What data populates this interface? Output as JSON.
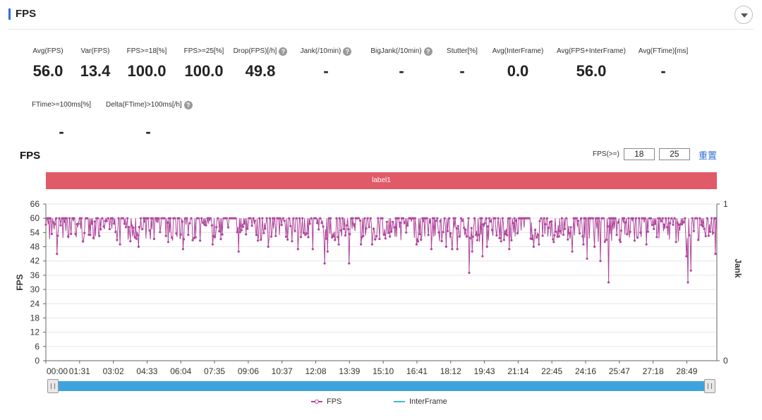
{
  "header": {
    "title": "FPS"
  },
  "metrics": [
    {
      "label": "Avg(FPS)",
      "value": "56.0",
      "help": false
    },
    {
      "label": "Var(FPS)",
      "value": "13.4",
      "help": false
    },
    {
      "label": "FPS>=18[%]",
      "value": "100.0",
      "help": false
    },
    {
      "label": "FPS>=25[%]",
      "value": "100.0",
      "help": false
    },
    {
      "label": "Drop(FPS)[/h]",
      "value": "49.8",
      "help": true
    },
    {
      "label": "Jank(/10min)",
      "value": "-",
      "help": true
    },
    {
      "label": "BigJank(/10min)",
      "value": "-",
      "help": true
    },
    {
      "label": "Stutter[%]",
      "value": "-",
      "help": false
    },
    {
      "label": "Avg(InterFrame)",
      "value": "0.0",
      "help": false
    },
    {
      "label": "Avg(FPS+InterFrame)",
      "value": "56.0",
      "help": false
    },
    {
      "label": "Avg(FTime)[ms]",
      "value": "-",
      "help": false
    },
    {
      "label": "FTime>=100ms[%]",
      "value": "-",
      "help": false
    },
    {
      "label": "Delta(FTime)>100ms[/h]",
      "value": "-",
      "help": true
    }
  ],
  "help_glyph": "?",
  "chart_section": {
    "title": "FPS",
    "threshold_label": "FPS(>=)",
    "threshold_values": [
      "18",
      "25"
    ],
    "reset_label": "重置",
    "band_label": "label1"
  },
  "chart_data": {
    "type": "line",
    "ylabel": "FPS",
    "y2label": "Jank",
    "yticks": [
      "0",
      "6",
      "12",
      "18",
      "24",
      "30",
      "36",
      "42",
      "48",
      "54",
      "60",
      "66"
    ],
    "ylim": [
      0,
      66
    ],
    "y2ticks": [
      "0",
      "1"
    ],
    "xticks": [
      "00:00",
      "01:31",
      "03:02",
      "04:33",
      "06:04",
      "07:35",
      "09:06",
      "10:37",
      "12:08",
      "13:39",
      "15:10",
      "16:41",
      "18:12",
      "19:43",
      "21:14",
      "22:45",
      "24:16",
      "25:47",
      "27:18",
      "28:49"
    ],
    "xlim_seconds": [
      0,
      1810
    ],
    "series": [
      {
        "name": "FPS",
        "color": "#b0479c"
      },
      {
        "name": "InterFrame",
        "color": "#3fb8d8",
        "values": []
      }
    ],
    "fps_dips": [
      {
        "t": 30,
        "v": 45
      },
      {
        "t": 200,
        "v": 49
      },
      {
        "t": 250,
        "v": 48
      },
      {
        "t": 330,
        "v": 50
      },
      {
        "t": 370,
        "v": 47
      },
      {
        "t": 450,
        "v": 49
      },
      {
        "t": 520,
        "v": 46
      },
      {
        "t": 600,
        "v": 48
      },
      {
        "t": 680,
        "v": 47
      },
      {
        "t": 720,
        "v": 47
      },
      {
        "t": 760,
        "v": 46
      },
      {
        "t": 790,
        "v": 49
      },
      {
        "t": 850,
        "v": 49
      },
      {
        "t": 880,
        "v": 49
      },
      {
        "t": 1000,
        "v": 49
      },
      {
        "t": 1040,
        "v": 47
      },
      {
        "t": 1080,
        "v": 48
      },
      {
        "t": 1110,
        "v": 47
      },
      {
        "t": 1150,
        "v": 46
      },
      {
        "t": 1190,
        "v": 48
      },
      {
        "t": 1250,
        "v": 47
      },
      {
        "t": 1330,
        "v": 49
      },
      {
        "t": 1370,
        "v": 50
      },
      {
        "t": 1420,
        "v": 46
      },
      {
        "t": 1450,
        "v": 49
      },
      {
        "t": 1480,
        "v": 48
      },
      {
        "t": 1550,
        "v": 50
      },
      {
        "t": 1620,
        "v": 49
      },
      {
        "t": 1700,
        "v": 50
      }
    ],
    "fps_spikes_down": [
      {
        "t": 240,
        "v": 52
      },
      {
        "t": 751,
        "v": 41
      },
      {
        "t": 818,
        "v": 41
      },
      {
        "t": 1095,
        "v": 47
      },
      {
        "t": 1141,
        "v": 37
      },
      {
        "t": 1177,
        "v": 44
      },
      {
        "t": 1315,
        "v": 48
      },
      {
        "t": 1460,
        "v": 43
      },
      {
        "t": 1495,
        "v": 42
      },
      {
        "t": 1518,
        "v": 33
      },
      {
        "t": 1728,
        "v": 44
      },
      {
        "t": 1732,
        "v": 33
      },
      {
        "t": 1740,
        "v": 38
      },
      {
        "t": 1805,
        "v": 45
      }
    ]
  },
  "legend": {
    "fps": "FPS",
    "interframe": "InterFrame"
  }
}
